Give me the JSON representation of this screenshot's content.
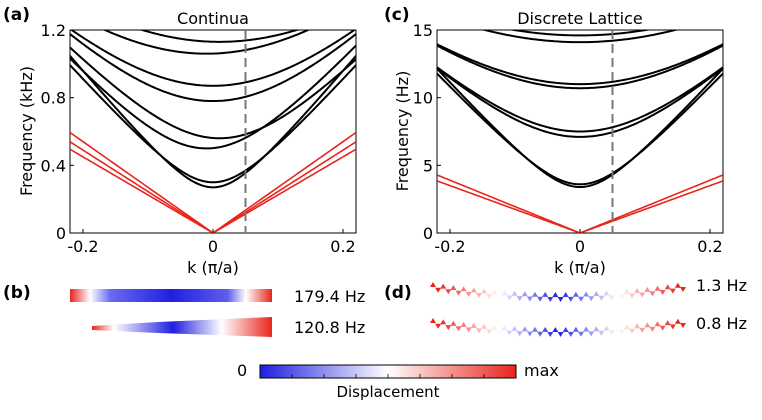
{
  "chart_data": [
    {
      "type": "line",
      "panel_label": "(a)",
      "title": "Continua",
      "xlabel": "k (π/a)",
      "ylabel": "Frequency (kHz)",
      "xlim": [
        -0.22,
        0.22
      ],
      "ylim": [
        0,
        1.2
      ],
      "xticks": [
        -0.2,
        0,
        0.2
      ],
      "xtick_labels": [
        "-0.2",
        "0",
        "0.2"
      ],
      "yticks": [
        0,
        0.4,
        0.8,
        1.2
      ],
      "ytick_labels": [
        "0",
        "0.4",
        "0.8",
        "1.2"
      ],
      "marker_k": 0.05,
      "series": [
        {
          "name": "acoustic-1",
          "color": "#e8251c",
          "kind": "acoustic",
          "x0": 0,
          "f0": 0,
          "slope": 2.7
        },
        {
          "name": "acoustic-2",
          "color": "#e8251c",
          "kind": "acoustic",
          "x0": 0,
          "f0": 0,
          "slope": 2.45
        },
        {
          "name": "acoustic-3",
          "color": "#e8251c",
          "kind": "acoustic",
          "x0": 0,
          "f0": 0,
          "slope": 2.25
        },
        {
          "name": "band-1",
          "color": "#000000",
          "kind": "optical",
          "x0": 0,
          "f0": 0.27,
          "slope": 4.6
        },
        {
          "name": "band-2",
          "color": "#000000",
          "kind": "optical",
          "x0": 0,
          "f0": 0.3,
          "slope": 4.3
        },
        {
          "name": "band-3",
          "color": "#000000",
          "kind": "optical",
          "x0": -0.01,
          "f0": 0.5,
          "slope": 4.3
        },
        {
          "name": "band-4",
          "color": "#000000",
          "kind": "optical",
          "x0": 0.01,
          "f0": 0.56,
          "slope": 4.1
        },
        {
          "name": "band-5",
          "color": "#000000",
          "kind": "optical",
          "x0": 0,
          "f0": 0.78,
          "slope": 4.0
        },
        {
          "name": "band-6",
          "color": "#000000",
          "kind": "optical",
          "x0": 0,
          "f0": 0.87,
          "slope": 3.8
        },
        {
          "name": "band-7",
          "color": "#000000",
          "kind": "optical",
          "x0": -0.01,
          "f0": 1.06,
          "slope": 3.6
        },
        {
          "name": "band-8",
          "color": "#000000",
          "kind": "optical",
          "x0": 0.01,
          "f0": 1.13,
          "slope": 3.4
        }
      ]
    },
    {
      "type": "line",
      "panel_label": "(c)",
      "title": "Discrete Lattice",
      "xlabel": "k (π/a)",
      "ylabel": "Frequency (Hz)",
      "xlim": [
        -0.22,
        0.22
      ],
      "ylim": [
        0,
        15
      ],
      "xticks": [
        -0.2,
        0,
        0.2
      ],
      "xtick_labels": [
        "-0.2",
        "0",
        "0.2"
      ],
      "yticks": [
        0,
        5,
        10,
        15
      ],
      "ytick_labels": [
        "0",
        "5",
        "10",
        "15"
      ],
      "marker_k": 0.05,
      "series": [
        {
          "name": "acoustic-1",
          "color": "#e8251c",
          "kind": "acoustic",
          "x0": 0,
          "f0": 0,
          "slope": 17.5
        },
        {
          "name": "acoustic-2",
          "color": "#e8251c",
          "kind": "acoustic",
          "x0": 0,
          "f0": 0,
          "slope": 19.5
        },
        {
          "name": "band-1",
          "color": "#000000",
          "kind": "optical",
          "x0": 0,
          "f0": 3.4,
          "slope": 53
        },
        {
          "name": "band-2",
          "color": "#000000",
          "kind": "optical",
          "x0": 0,
          "f0": 3.6,
          "slope": 51
        },
        {
          "name": "band-3",
          "color": "#000000",
          "kind": "optical",
          "x0": 0,
          "f0": 7.1,
          "slope": 45
        },
        {
          "name": "band-4",
          "color": "#000000",
          "kind": "optical",
          "x0": 0,
          "f0": 7.5,
          "slope": 44
        },
        {
          "name": "band-5",
          "color": "#000000",
          "kind": "optical",
          "x0": 0,
          "f0": 10.7,
          "slope": 40
        },
        {
          "name": "band-6",
          "color": "#000000",
          "kind": "optical",
          "x0": 0,
          "f0": 11.0,
          "slope": 39
        },
        {
          "name": "band-7",
          "color": "#000000",
          "kind": "optical",
          "x0": 0,
          "f0": 14.1,
          "slope": 35
        },
        {
          "name": "band-8",
          "color": "#000000",
          "kind": "optical",
          "x0": 0,
          "f0": 14.6,
          "slope": 34
        }
      ]
    }
  ],
  "mode_shapes": {
    "continua": {
      "panel_label": "(b)",
      "modes": [
        {
          "frequency": "179.4 Hz"
        },
        {
          "frequency": "120.8 Hz"
        }
      ]
    },
    "lattice": {
      "panel_label": "(d)",
      "modes": [
        {
          "frequency": "1.3 Hz"
        },
        {
          "frequency": "0.8 Hz"
        }
      ]
    }
  },
  "colorbar": {
    "label": "Displacement",
    "min_label": "0",
    "max_label": "max",
    "colors": [
      "#1f1fe0",
      "#ffffff",
      "#e8251c"
    ]
  }
}
